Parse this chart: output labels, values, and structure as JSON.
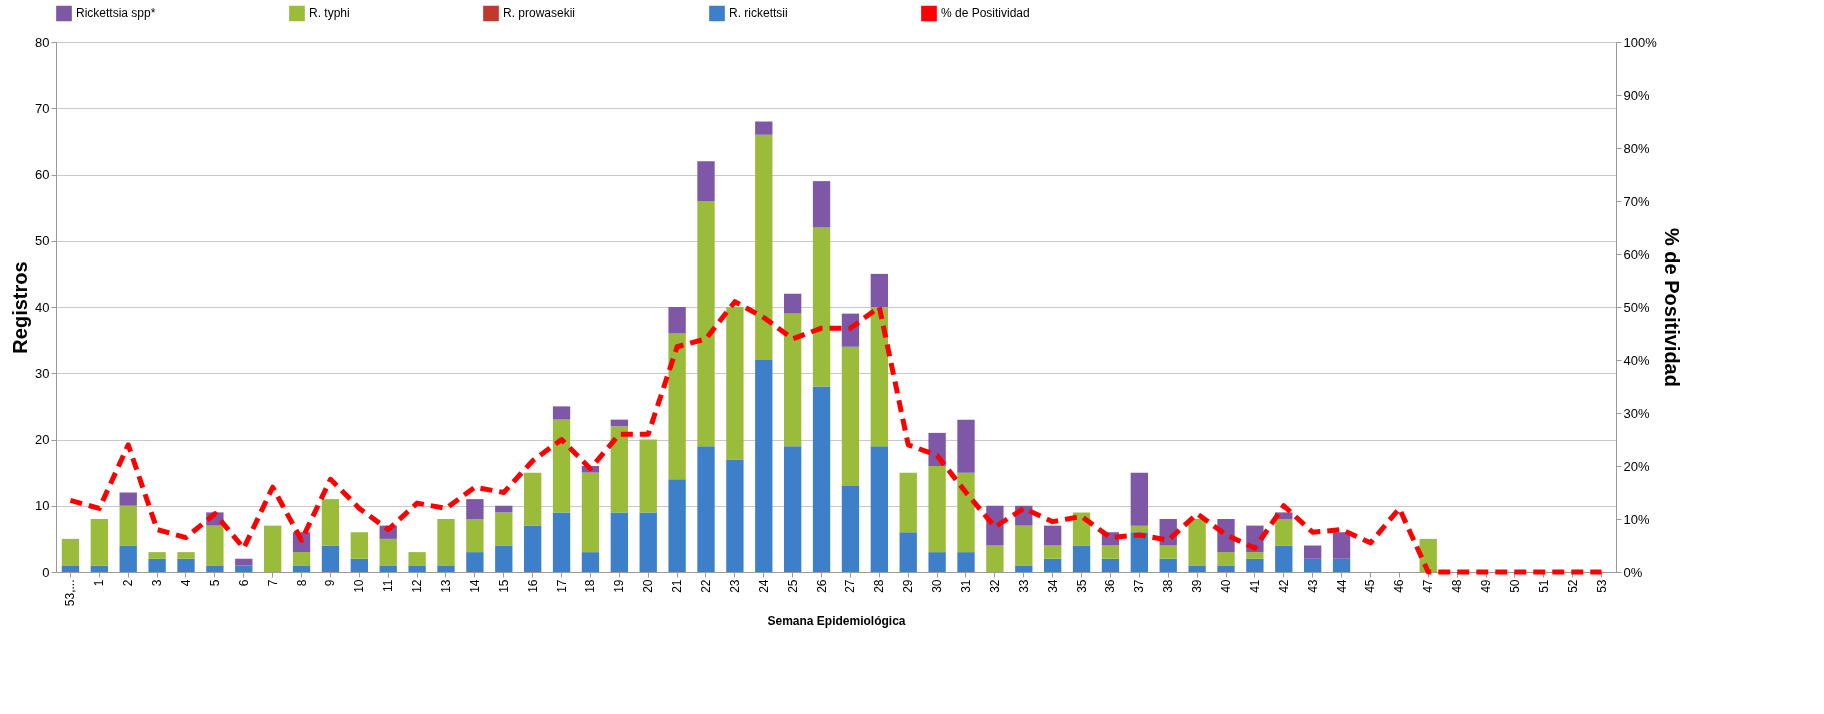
{
  "chart_data": {
    "type": "bar",
    "stacked": true,
    "xlabel": "Semana Epidemiológica",
    "ylabel": "Registros",
    "y2label": "% de Positividad",
    "categories": [
      "53,...",
      "1",
      "2",
      "3",
      "4",
      "5",
      "6",
      "7",
      "8",
      "9",
      "10",
      "11",
      "12",
      "13",
      "14",
      "15",
      "16",
      "17",
      "18",
      "19",
      "20",
      "21",
      "22",
      "23",
      "24",
      "25",
      "26",
      "27",
      "28",
      "29",
      "30",
      "31",
      "32",
      "33",
      "34",
      "35",
      "36",
      "37",
      "38",
      "39",
      "40",
      "41",
      "42",
      "43",
      "44",
      "45",
      "46",
      "47",
      "48",
      "49",
      "50",
      "51",
      "52",
      "53"
    ],
    "series": [
      {
        "name": "R. rickettsii",
        "color": "#3d7fc9",
        "values": [
          1,
          1,
          4,
          2,
          2,
          1,
          1,
          0,
          1,
          4,
          2,
          1,
          1,
          1,
          3,
          4,
          7,
          9,
          3,
          9,
          9,
          14,
          19,
          17,
          32,
          19,
          28,
          13,
          19,
          6,
          3,
          3,
          0,
          1,
          2,
          4,
          2,
          6,
          2,
          1,
          1,
          2,
          4,
          2,
          2,
          0,
          0,
          0,
          0,
          0,
          0,
          0,
          0,
          0
        ]
      },
      {
        "name": "R. prowasekii",
        "color": "#c0392b",
        "values": [
          0,
          0,
          0,
          0,
          0,
          0,
          0,
          0,
          0,
          0,
          0,
          0,
          0,
          0,
          0,
          0,
          0,
          0,
          0,
          0,
          0,
          0,
          0,
          0,
          0,
          0,
          0,
          0,
          0,
          0,
          0,
          0,
          0,
          0,
          0,
          0,
          0,
          0,
          0,
          0,
          0,
          0,
          0,
          0,
          0,
          0,
          0,
          0,
          0,
          0,
          0,
          0,
          0,
          0
        ]
      },
      {
        "name": "R. typhi",
        "color": "#9bbb3b",
        "values": [
          4,
          7,
          6,
          1,
          1,
          6,
          0,
          7,
          2,
          7,
          4,
          4,
          2,
          7,
          5,
          5,
          8,
          14,
          12,
          13,
          11,
          22,
          37,
          23,
          34,
          20,
          24,
          21,
          21,
          9,
          13,
          12,
          4,
          6,
          2,
          5,
          2,
          1,
          2,
          7,
          2,
          1,
          4,
          0,
          0,
          0,
          0,
          5,
          0,
          0,
          0,
          0,
          0,
          0
        ]
      },
      {
        "name": "Rickettsia spp*",
        "color": "#7e57a6",
        "values": [
          0,
          0,
          2,
          0,
          0,
          2,
          1,
          0,
          3,
          0,
          0,
          2,
          0,
          0,
          3,
          1,
          0,
          2,
          1,
          1,
          0,
          4,
          6,
          0,
          2,
          3,
          7,
          5,
          5,
          0,
          5,
          8,
          6,
          3,
          3,
          0,
          2,
          8,
          4,
          0,
          5,
          4,
          1,
          2,
          4,
          0,
          0,
          0,
          0,
          0,
          0,
          0,
          0,
          0
        ]
      },
      {
        "name": "% de Positividad",
        "type": "line",
        "axis": "y2",
        "color": "#ff0000",
        "line_style": "dashed",
        "values": [
          13.5,
          12,
          24,
          8,
          6.5,
          11,
          4.5,
          16,
          6,
          17.5,
          12,
          8,
          13,
          12,
          16,
          15,
          21,
          25,
          19.5,
          26,
          26,
          42.5,
          44,
          51,
          48,
          44,
          46,
          46,
          50,
          24,
          22,
          15,
          8.5,
          12,
          9.5,
          10.5,
          6.5,
          7,
          6,
          11,
          7,
          4.5,
          12.5,
          7.5,
          8,
          5.5,
          12,
          0,
          0,
          0,
          0,
          0,
          0,
          0
        ]
      }
    ],
    "ylim": [
      0,
      80
    ],
    "yticks": [
      0,
      10,
      20,
      30,
      40,
      50,
      60,
      70,
      80
    ],
    "y2lim": [
      0,
      100
    ],
    "y2ticks": [
      {
        "value": 0,
        "label": "0%"
      },
      {
        "value": 10,
        "label": "10%"
      },
      {
        "value": 20,
        "label": "20%"
      },
      {
        "value": 30,
        "label": "30%"
      },
      {
        "value": 40,
        "label": "40%"
      },
      {
        "value": 50,
        "label": "50%"
      },
      {
        "value": 60,
        "label": "60%"
      },
      {
        "value": 70,
        "label": "70%"
      },
      {
        "value": 80,
        "label": "80%"
      },
      {
        "value": 90,
        "label": "90%"
      },
      {
        "value": 100,
        "label": "100%"
      }
    ],
    "grid": "y",
    "legend": "top"
  }
}
